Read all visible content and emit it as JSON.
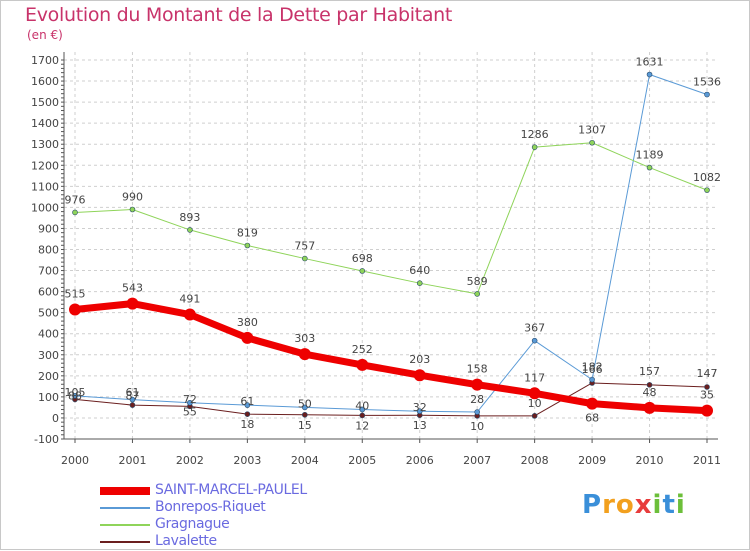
{
  "title": "Evolution du Montant de la Dette par Habitant",
  "subtitle": "(en €)",
  "logo": {
    "letters": [
      "P",
      "r",
      "o",
      "x",
      "i",
      "t",
      "i"
    ],
    "colors": [
      "#3a8fd9",
      "#f2a01e",
      "#f2a01e",
      "#e83c3c",
      "#6cbf3a",
      "#3a8fd9",
      "#6cbf3a"
    ]
  },
  "chart_data": {
    "type": "line",
    "categories": [
      "2000",
      "2001",
      "2002",
      "2003",
      "2004",
      "2005",
      "2006",
      "2007",
      "2008",
      "2009",
      "2010",
      "2011"
    ],
    "ylim": [
      -100,
      1700
    ],
    "yticks": [
      -100,
      0,
      100,
      200,
      300,
      400,
      500,
      600,
      700,
      800,
      900,
      1000,
      1100,
      1200,
      1300,
      1400,
      1500,
      1600,
      1700
    ],
    "grid": true,
    "legend_position": "bottom-left",
    "series": [
      {
        "name": "Lavalette",
        "color": "#6b1f1f",
        "width": 1,
        "marker": 2.5,
        "values": [
          88,
          61,
          55,
          18,
          15,
          12,
          13,
          10,
          10,
          166,
          157,
          147
        ],
        "labels": [
          "88",
          "61",
          "55",
          "18",
          "15",
          "12",
          "13",
          "10",
          "10",
          "166",
          "157",
          "147"
        ],
        "labelOffset": [
          0,
          -9,
          1,
          6,
          6,
          6,
          6,
          6,
          -9,
          -10,
          -10,
          -10
        ]
      },
      {
        "name": "Bonrepos-Riquet",
        "color": "#5a9ad6",
        "width": 1,
        "marker": 2.5,
        "values": [
          105,
          87,
          72,
          61,
          50,
          40,
          32,
          28,
          367,
          182,
          1631,
          1536
        ],
        "labels": [
          "105",
          "87",
          "72",
          "61",
          "50",
          "40",
          "32",
          "28",
          "367",
          "182",
          "1631",
          "1536"
        ],
        "labelOffset": [
          0,
          0,
          0,
          0,
          0,
          0,
          0,
          -9,
          -9,
          -9,
          -9,
          -9
        ]
      },
      {
        "name": "Gragnague",
        "color": "#8fd45a",
        "width": 1,
        "marker": 2.5,
        "values": [
          976,
          990,
          893,
          819,
          757,
          698,
          640,
          589,
          1286,
          1307,
          1189,
          1082
        ],
        "labels": [
          "976",
          "990",
          "893",
          "819",
          "757",
          "698",
          "640",
          "589",
          "1286",
          "1307",
          "1189",
          "1082"
        ],
        "labelOffset": [
          -9,
          -9,
          -9,
          -9,
          -9,
          -9,
          -9,
          -9,
          -9,
          -9,
          -9,
          -9
        ]
      },
      {
        "name": "SAINT-MARCEL-PAULEL",
        "color": "#ee0000",
        "width": 7,
        "marker": 6,
        "values": [
          515,
          543,
          491,
          380,
          303,
          252,
          203,
          158,
          117,
          68,
          48,
          35
        ],
        "labels": [
          "515",
          "543",
          "491",
          "380",
          "303",
          "252",
          "203",
          "158",
          "117",
          "68",
          "48",
          "35"
        ],
        "labelOffset": [
          -12,
          -12,
          -12,
          -12,
          -12,
          -12,
          -12,
          -12,
          -12,
          10,
          -12,
          -12
        ]
      }
    ],
    "legend": [
      "SAINT-MARCEL-PAULEL",
      "Bonrepos-Riquet",
      "Gragnague",
      "Lavalette"
    ]
  }
}
